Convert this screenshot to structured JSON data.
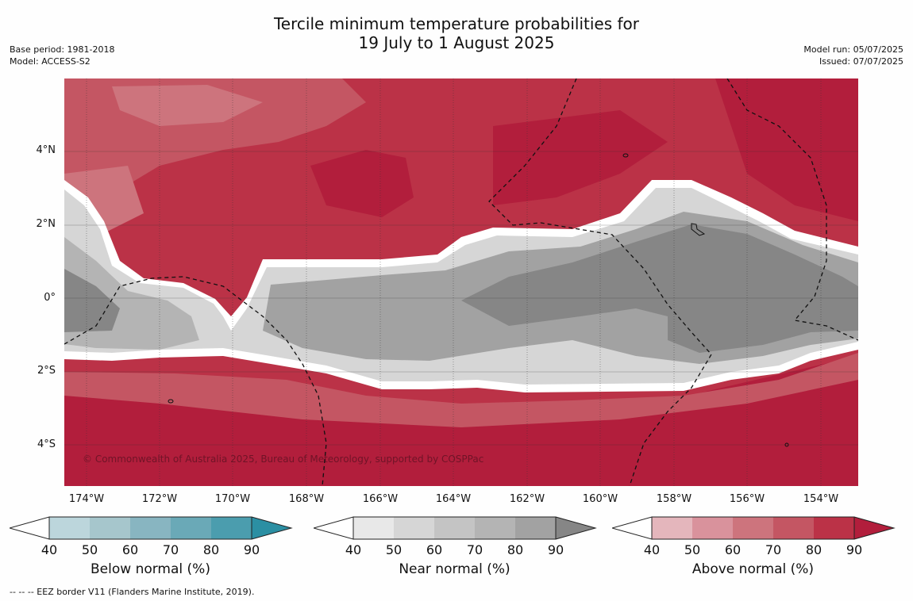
{
  "title": {
    "line1": "Tercile minimum temperature probabilities for",
    "line2": "19 July to 1 August 2025"
  },
  "meta_left": {
    "base_period": "Base period: 1981-2018",
    "model": "Model: ACCESS-S2"
  },
  "meta_right": {
    "model_run": "Model run: 05/07/2025",
    "issued": "Issued: 07/07/2025"
  },
  "axes": {
    "x_ticks": [
      "174°W",
      "172°W",
      "170°W",
      "168°W",
      "166°W",
      "164°W",
      "162°W",
      "160°W",
      "158°W",
      "156°W",
      "154°W"
    ],
    "y_ticks": [
      "4°N",
      "2°N",
      "0°",
      "2°S",
      "4°S"
    ]
  },
  "copyright": "© Commonwealth of Australia 2025, Bureau of Meteorology, supported by COSPPac",
  "colorbars": [
    {
      "label": "Below normal (%)",
      "ticks": [
        "40",
        "50",
        "60",
        "70",
        "80",
        "90"
      ],
      "colors": [
        "#bcd6dc",
        "#a6c6cc",
        "#88b5c1",
        "#6aa9b7",
        "#4b9dae",
        "#2b8fa3"
      ]
    },
    {
      "label": "Near normal (%)",
      "ticks": [
        "40",
        "50",
        "60",
        "70",
        "80",
        "90"
      ],
      "colors": [
        "#e8e8e8",
        "#d6d6d6",
        "#c4c4c4",
        "#b4b4b4",
        "#a2a2a2",
        "#868686"
      ]
    },
    {
      "label": "Above normal (%)",
      "ticks": [
        "40",
        "50",
        "60",
        "70",
        "80",
        "90"
      ],
      "colors": [
        "#e4b6bc",
        "#d9929c",
        "#cd747d",
        "#c45663",
        "#bb3247",
        "#b21e3c"
      ]
    }
  ],
  "footnote": "--  --  -- EEZ border V11 (Flanders Marine Institute, 2019)."
}
